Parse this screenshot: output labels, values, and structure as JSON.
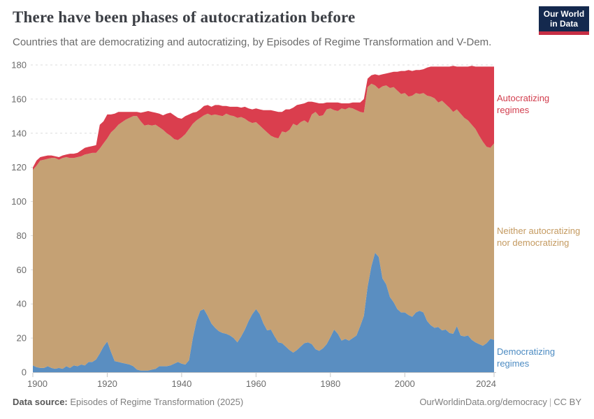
{
  "header": {
    "title": "There have been phases of autocratization before",
    "subtitle": "Countries that are democratizing and autocratizing, by Episodes of Regime Transformation and V-Dem."
  },
  "logo": {
    "line1": "Our World",
    "line2": "in Data"
  },
  "chart_data": {
    "type": "area",
    "stacked": true,
    "title": "There have been phases of autocratization before",
    "xlabel": "",
    "ylabel": "",
    "x_range": [
      1900,
      2024
    ],
    "ylim": [
      0,
      180
    ],
    "yticks": [
      0,
      20,
      40,
      60,
      80,
      100,
      120,
      140,
      160,
      180
    ],
    "xticks": [
      1900,
      1920,
      1940,
      1960,
      1980,
      2000,
      2024
    ],
    "grid": true,
    "legend_position": "right",
    "years": [
      1900,
      1901,
      1902,
      1903,
      1904,
      1905,
      1906,
      1907,
      1908,
      1909,
      1910,
      1911,
      1912,
      1913,
      1914,
      1915,
      1916,
      1917,
      1918,
      1919,
      1920,
      1921,
      1922,
      1923,
      1924,
      1925,
      1926,
      1927,
      1928,
      1929,
      1930,
      1931,
      1932,
      1933,
      1934,
      1935,
      1936,
      1937,
      1938,
      1939,
      1940,
      1941,
      1942,
      1943,
      1944,
      1945,
      1946,
      1947,
      1948,
      1949,
      1950,
      1951,
      1952,
      1953,
      1954,
      1955,
      1956,
      1957,
      1958,
      1959,
      1960,
      1961,
      1962,
      1963,
      1964,
      1965,
      1966,
      1967,
      1968,
      1969,
      1970,
      1971,
      1972,
      1973,
      1974,
      1975,
      1976,
      1977,
      1978,
      1979,
      1980,
      1981,
      1982,
      1983,
      1984,
      1985,
      1986,
      1987,
      1988,
      1989,
      1990,
      1991,
      1992,
      1993,
      1994,
      1995,
      1996,
      1997,
      1998,
      1999,
      2000,
      2001,
      2002,
      2003,
      2004,
      2005,
      2006,
      2007,
      2008,
      2009,
      2010,
      2011,
      2012,
      2013,
      2014,
      2015,
      2016,
      2017,
      2018,
      2019,
      2020,
      2021,
      2022,
      2023,
      2024
    ],
    "series": [
      {
        "id": "democratizing",
        "name": "Democratizing regimes",
        "color": "#5a8ec1",
        "label_color": "#4c8bc2",
        "values": [
          4,
          3,
          2.5,
          2.5,
          3.5,
          2.5,
          2,
          2.5,
          2,
          3.5,
          2.5,
          4,
          3.5,
          4.5,
          4,
          6,
          6,
          7.5,
          11,
          15,
          18,
          12,
          6.5,
          6,
          5.5,
          5,
          4.5,
          3.5,
          1.5,
          1,
          1,
          1,
          1.5,
          2,
          3.5,
          3.5,
          3.5,
          4,
          5,
          6,
          5,
          4.5,
          7,
          20,
          30,
          36,
          37,
          33,
          28.5,
          26,
          24,
          23,
          22.5,
          21.5,
          20,
          17.5,
          21,
          25,
          30,
          34,
          37,
          34,
          28.5,
          24.5,
          25,
          21,
          17.5,
          17,
          15,
          13,
          11.5,
          13,
          15,
          17,
          17.5,
          16.5,
          13.5,
          12.5,
          14,
          16.5,
          20.5,
          25,
          22.5,
          18.5,
          19.5,
          18.5,
          20,
          21.5,
          27,
          33,
          50,
          62,
          70,
          67.5,
          55,
          51.5,
          44,
          41,
          37,
          35,
          35,
          33.5,
          32.5,
          35,
          36,
          35,
          30,
          27.5,
          26,
          26.5,
          24.5,
          25,
          23,
          22.5,
          27,
          21.5,
          21,
          21.5,
          19,
          17.5,
          16.5,
          15.5,
          17,
          19.5,
          19
        ]
      },
      {
        "id": "neither",
        "name": "Neither autocratizing nor democratizing",
        "color": "#c5a174",
        "label_color": "#c49a60",
        "values": [
          114.5,
          118,
          121.5,
          122,
          121.5,
          123,
          123.5,
          122,
          123.5,
          122.5,
          123,
          121.5,
          122.5,
          122,
          123.5,
          122,
          122.5,
          121,
          120,
          119,
          119,
          128.5,
          136,
          139,
          141,
          143,
          144.5,
          146.5,
          148.5,
          146,
          143.5,
          144,
          143,
          143,
          140,
          138.5,
          136.5,
          134.5,
          131.5,
          130,
          132.5,
          135,
          135.5,
          125.5,
          117.5,
          113,
          113.5,
          118.5,
          122,
          125,
          126.5,
          127,
          129,
          129,
          130,
          131.5,
          128.5,
          123.5,
          117,
          112,
          109.5,
          110.5,
          114,
          116,
          113.5,
          116.5,
          119.5,
          124,
          125.5,
          129,
          134,
          131.5,
          131.5,
          130.5,
          128.5,
          134.5,
          139,
          137.5,
          136.5,
          137.5,
          134,
          128.5,
          130.5,
          136,
          134.5,
          136.5,
          134.5,
          132,
          125.5,
          119,
          117,
          107,
          98,
          98.5,
          112.5,
          116.5,
          122.5,
          126,
          128,
          128,
          128.5,
          128,
          129.5,
          128.5,
          127,
          128.5,
          132,
          134,
          134.5,
          131.5,
          134.5,
          132,
          132,
          130,
          127,
          130,
          128,
          126,
          126,
          125,
          122,
          119.5,
          115,
          112,
          115
        ]
      },
      {
        "id": "autocratizing",
        "name": "Autocratizing regimes",
        "color": "#da3e4e",
        "label_color": "#d23d4d",
        "values": [
          1.5,
          3,
          2,
          2,
          2,
          1.5,
          1,
          1.5,
          1.5,
          1.5,
          2.5,
          2.5,
          2.5,
          3.5,
          4,
          4,
          4,
          4.5,
          14,
          13,
          14,
          10.5,
          9,
          7.5,
          6,
          4.5,
          3.5,
          2.5,
          2.5,
          5,
          8,
          8,
          8,
          7,
          8,
          8.5,
          11.5,
          13.5,
          14,
          13,
          11,
          10.5,
          8.5,
          6.5,
          5,
          5,
          5.5,
          5,
          5,
          5.5,
          6,
          6,
          4.5,
          5,
          5.5,
          6.5,
          5.5,
          7,
          7.5,
          8,
          8,
          9.5,
          11,
          13,
          15,
          15.5,
          15.5,
          11.5,
          13.5,
          12,
          9.5,
          12,
          10.5,
          10,
          12.5,
          7.5,
          5.5,
          7.5,
          7,
          4,
          3.5,
          4.5,
          5,
          3,
          3.5,
          2.5,
          3.5,
          4.5,
          5.5,
          8,
          5,
          5,
          6.5,
          8,
          7,
          7,
          9,
          9,
          11,
          13.5,
          13,
          15.5,
          14.5,
          13.5,
          14,
          14,
          16.5,
          17.5,
          18.5,
          21,
          20,
          22,
          24,
          27,
          25,
          27.5,
          30,
          31.5,
          34.5,
          36.5,
          40.5,
          44,
          47,
          47.5,
          45
        ]
      }
    ]
  },
  "footer": {
    "source_label": "Data source:",
    "source_value": "Episodes of Regime Transformation (2025)",
    "credit": "OurWorldinData.org/democracy",
    "separator": "|",
    "license": "CC BY"
  }
}
